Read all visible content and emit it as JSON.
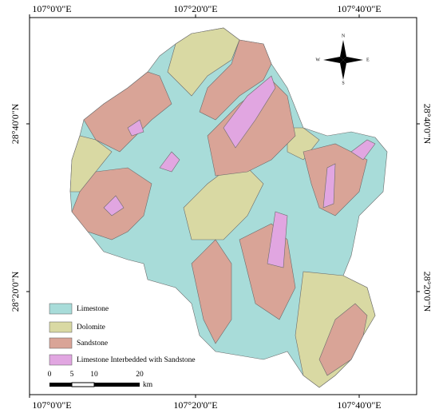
{
  "coordinates": {
    "top": [
      "107°0'0\"E",
      "107°20'0\"E",
      "107°40'0\"E"
    ],
    "bottom": [
      "107°0'0\"E",
      "107°20'0\"E",
      "107°40'0\"E"
    ],
    "left": [
      "28°40'0\"N",
      "28°20'0\"N"
    ],
    "right": [
      "28°40'0\"N",
      "28°20'0\"N"
    ]
  },
  "compass": {
    "north": "N",
    "east": "E",
    "south": "S",
    "west": "W"
  },
  "legend": [
    "Limestone",
    "Dolomite",
    "Sandstone",
    "Limestone Interbedded with Sandstone"
  ],
  "scale_bar": {
    "ticks": [
      "0",
      "5",
      "10",
      "20"
    ],
    "unit": "km"
  }
}
